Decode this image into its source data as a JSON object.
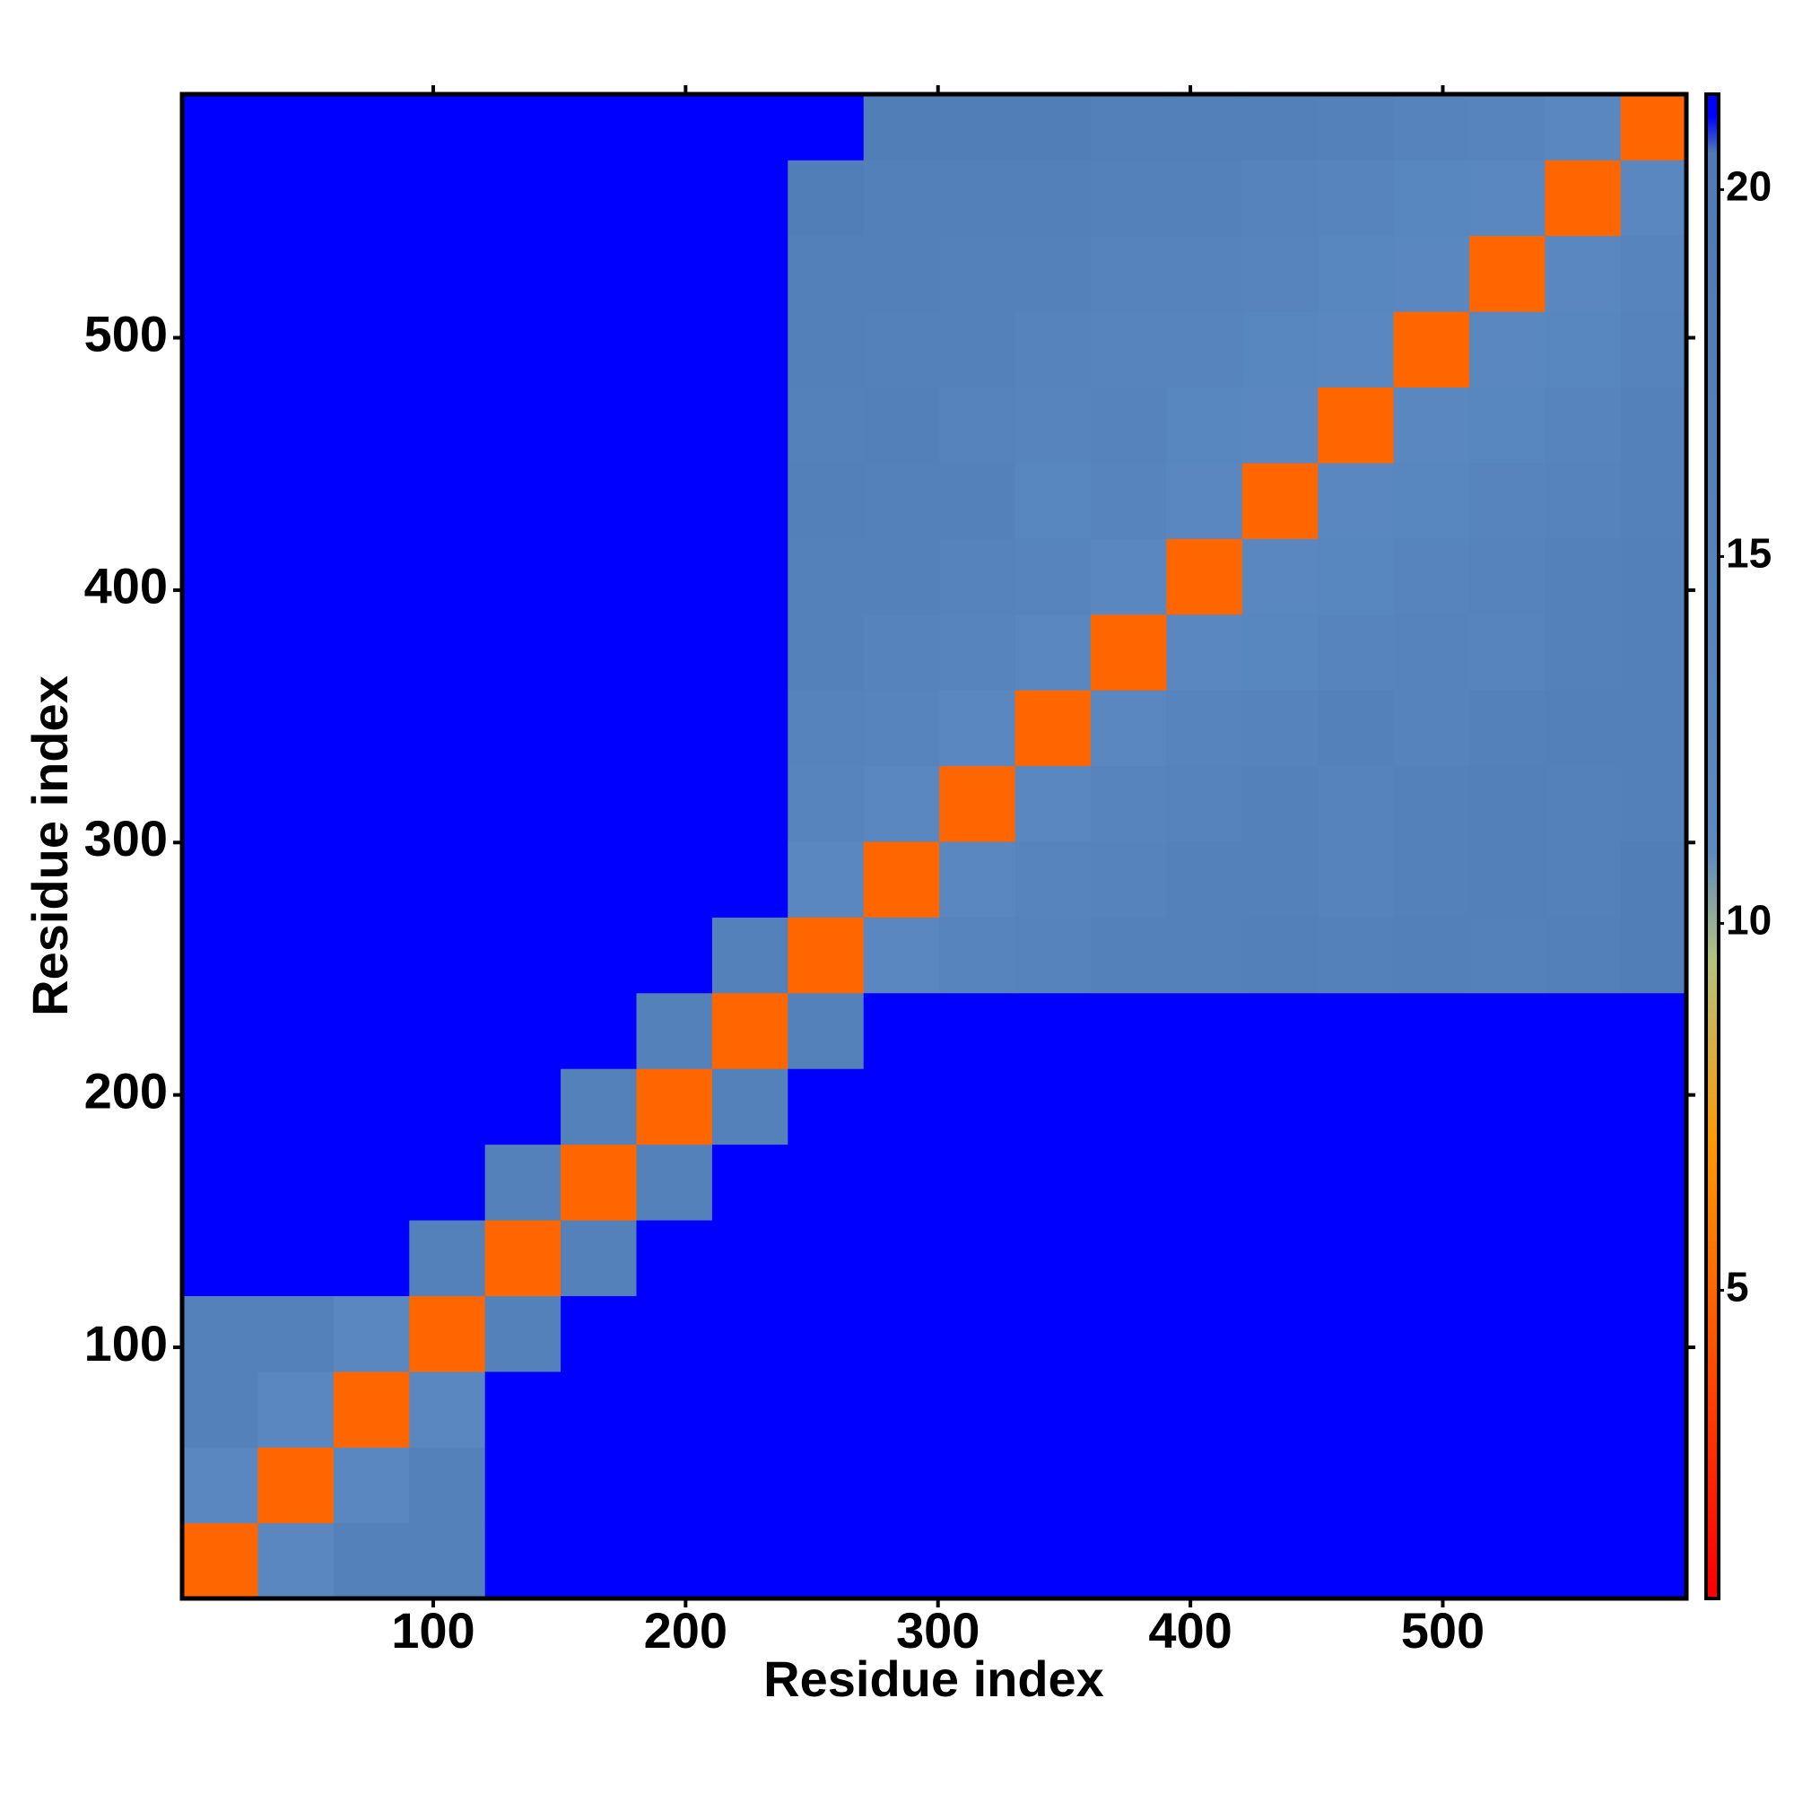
{
  "chart_data": {
    "type": "heatmap",
    "xlabel": "Residue index",
    "ylabel": "Residue index",
    "xlim": [
      0.5,
      596.5
    ],
    "ylim": [
      0.5,
      596.5
    ],
    "xticks": [
      100,
      200,
      300,
      400,
      500
    ],
    "yticks": [
      100,
      200,
      300,
      400,
      500
    ],
    "xbins": [
      0.5,
      30.5,
      60.5,
      90.5,
      120.5,
      150.5,
      180.5,
      210.5,
      240.5,
      270.5,
      300.5,
      330.5,
      360.5,
      390.5,
      420.5,
      450.5,
      480.5,
      510.5,
      540.5,
      570.5,
      596.5
    ],
    "ybins": [
      0.5,
      30.5,
      60.5,
      90.5,
      120.5,
      150.5,
      180.5,
      210.5,
      240.5,
      270.5,
      300.5,
      330.5,
      360.5,
      390.5,
      420.5,
      450.5,
      480.5,
      510.5,
      540.5,
      570.5,
      596.5
    ],
    "z": [
      [
        5,
        12,
        16,
        16,
        21,
        21,
        21,
        21,
        21,
        21,
        21,
        21,
        21,
        21,
        21,
        21,
        21,
        21,
        21,
        21
      ],
      [
        12,
        5,
        12,
        16,
        21,
        21,
        21,
        21,
        21,
        21,
        21,
        21,
        21,
        21,
        21,
        21,
        21,
        21,
        21,
        21
      ],
      [
        16,
        12,
        5,
        12,
        21,
        21,
        21,
        21,
        21,
        21,
        21,
        21,
        21,
        21,
        21,
        21,
        21,
        21,
        21,
        21
      ],
      [
        16,
        16,
        12,
        5,
        16,
        21,
        21,
        21,
        21,
        21,
        21,
        21,
        21,
        21,
        21,
        21,
        21,
        21,
        21,
        21
      ],
      [
        21,
        21,
        21,
        16,
        5,
        16,
        21,
        21,
        21,
        21,
        21,
        21,
        21,
        21,
        21,
        21,
        21,
        21,
        21,
        21
      ],
      [
        21,
        21,
        21,
        21,
        16,
        5,
        16,
        21,
        21,
        21,
        21,
        21,
        21,
        21,
        21,
        21,
        21,
        21,
        21,
        21
      ],
      [
        21,
        21,
        21,
        21,
        21,
        16,
        5,
        16,
        21,
        21,
        21,
        21,
        21,
        21,
        21,
        21,
        21,
        21,
        21,
        21
      ],
      [
        21,
        21,
        21,
        21,
        21,
        21,
        16,
        5,
        16,
        21,
        21,
        21,
        21,
        21,
        21,
        21,
        21,
        21,
        21,
        21
      ],
      [
        21,
        21,
        21,
        21,
        21,
        21,
        21,
        16,
        5,
        12,
        14,
        15,
        16,
        16,
        17,
        16,
        17,
        16,
        17,
        18
      ],
      [
        21,
        21,
        21,
        21,
        21,
        21,
        21,
        21,
        12,
        5,
        12,
        14,
        15,
        16,
        16,
        15,
        16,
        17,
        16,
        18
      ],
      [
        21,
        21,
        21,
        21,
        21,
        21,
        21,
        21,
        14,
        12,
        5,
        12,
        14,
        15,
        16,
        15,
        16,
        17,
        16,
        17
      ],
      [
        21,
        21,
        21,
        21,
        21,
        21,
        21,
        21,
        15,
        14,
        12,
        5,
        12,
        14,
        15,
        16,
        15,
        16,
        17,
        17
      ],
      [
        21,
        21,
        21,
        21,
        21,
        21,
        21,
        21,
        16,
        15,
        14,
        12,
        5,
        12,
        13,
        14,
        15,
        14,
        16,
        17
      ],
      [
        21,
        21,
        21,
        21,
        21,
        21,
        21,
        21,
        16,
        16,
        15,
        14,
        12,
        5,
        12,
        13,
        14,
        15,
        16,
        17
      ],
      [
        21,
        21,
        21,
        21,
        21,
        21,
        21,
        21,
        17,
        16,
        16,
        13,
        14,
        12,
        5,
        12,
        13,
        14,
        15,
        16
      ],
      [
        21,
        21,
        21,
        21,
        21,
        21,
        21,
        21,
        16,
        17,
        15,
        14,
        15,
        13,
        12,
        5,
        12,
        13,
        14,
        16
      ],
      [
        21,
        21,
        21,
        21,
        21,
        21,
        21,
        21,
        17,
        16,
        16,
        15,
        14,
        14,
        13,
        12,
        5,
        12,
        13,
        15
      ],
      [
        21,
        21,
        21,
        21,
        21,
        21,
        21,
        21,
        17,
        17,
        16,
        16,
        15,
        15,
        14,
        13,
        12,
        5,
        12,
        14
      ],
      [
        21,
        21,
        21,
        21,
        21,
        21,
        21,
        21,
        18,
        17,
        17,
        17,
        16,
        16,
        15,
        14,
        13,
        12,
        5,
        12
      ],
      [
        21,
        21,
        21,
        21,
        21,
        21,
        21,
        21,
        21,
        18,
        18,
        18,
        17,
        17,
        17,
        16,
        15,
        14,
        12,
        5
      ]
    ],
    "clim": [
      0.8,
      21.3
    ],
    "colorbar_ticks": [
      5,
      10,
      15,
      20
    ],
    "colorscale": [
      [
        1,
        "#ff0000"
      ],
      [
        7,
        "#ff9900"
      ],
      [
        9.5,
        "#b5c27e"
      ],
      [
        11,
        "#5b89c0"
      ],
      [
        20.5,
        "#4f7ab5"
      ],
      [
        21,
        "#0000ff"
      ]
    ]
  }
}
